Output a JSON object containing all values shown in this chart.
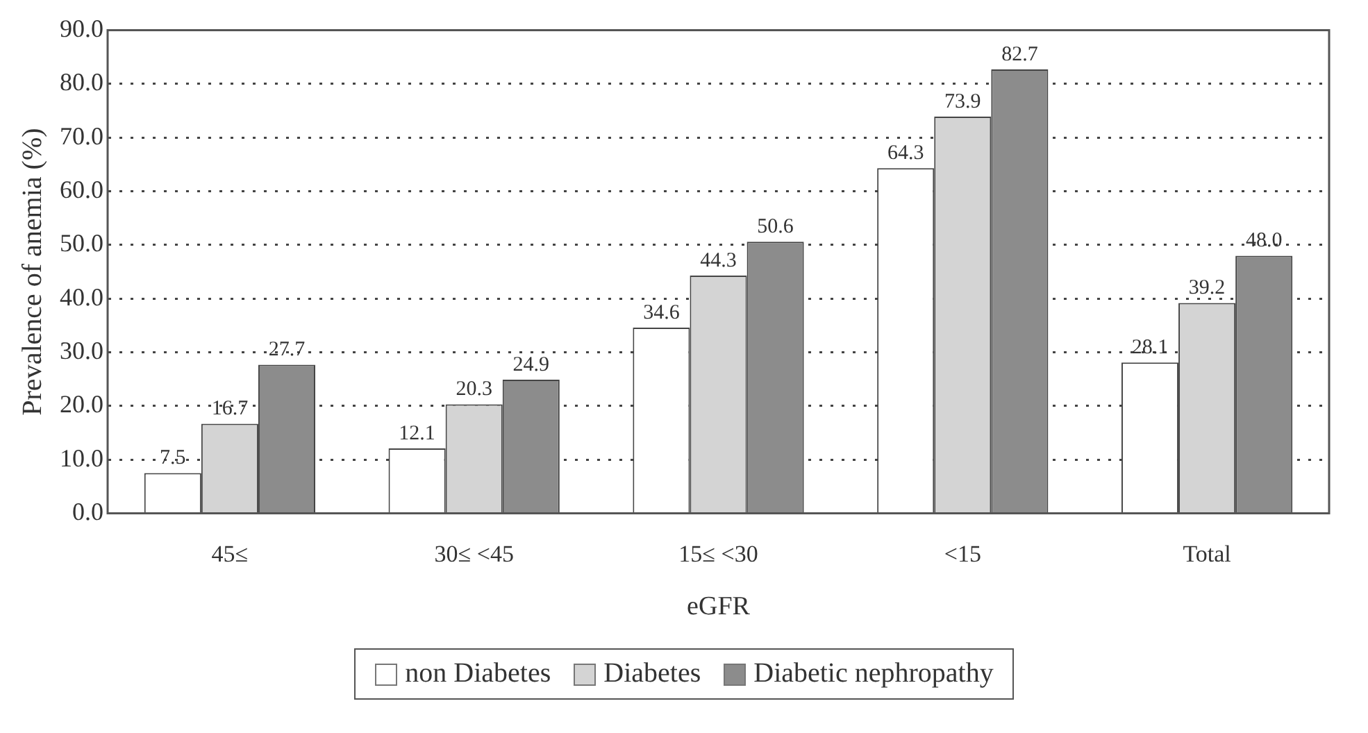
{
  "chart_data": {
    "type": "bar",
    "xlabel": "eGFR",
    "ylabel": "Prevalence of anemia (%)",
    "categories": [
      "45≤",
      "30≤ <45",
      "15≤ <30",
      "<15",
      "Total"
    ],
    "series": [
      {
        "name": "non Diabetes",
        "color": "#ffffff",
        "values": [
          7.5,
          12.1,
          34.6,
          64.3,
          28.1
        ],
        "value_labels": [
          "7.5",
          "12.1",
          "34.6",
          "64.3",
          "28.1"
        ]
      },
      {
        "name": "Diabetes",
        "color": "#d4d4d4",
        "values": [
          16.7,
          20.3,
          44.3,
          73.9,
          39.2
        ],
        "value_labels": [
          "16.7",
          "20.3",
          "44.3",
          "73.9",
          "39.2"
        ]
      },
      {
        "name": "Diabetic nephropathy",
        "color": "#8c8c8c",
        "values": [
          27.7,
          24.9,
          50.6,
          82.7,
          48.0
        ],
        "value_labels": [
          "27.7",
          "24.9",
          "50.6",
          "82.7",
          "48.0"
        ]
      }
    ],
    "ylim": [
      0,
      90
    ],
    "yticks": [
      {
        "value": 0,
        "label": "0.0"
      },
      {
        "value": 10,
        "label": "10.0"
      },
      {
        "value": 20,
        "label": "20.0"
      },
      {
        "value": 30,
        "label": "30.0"
      },
      {
        "value": 40,
        "label": "40.0"
      },
      {
        "value": 50,
        "label": "50.0"
      },
      {
        "value": 60,
        "label": "60.0"
      },
      {
        "value": 70,
        "label": "70.0"
      },
      {
        "value": 80,
        "label": "80.0"
      },
      {
        "value": 90,
        "label": "90.0"
      }
    ],
    "grid": "y",
    "legend": "bottom",
    "data_labels": true
  }
}
